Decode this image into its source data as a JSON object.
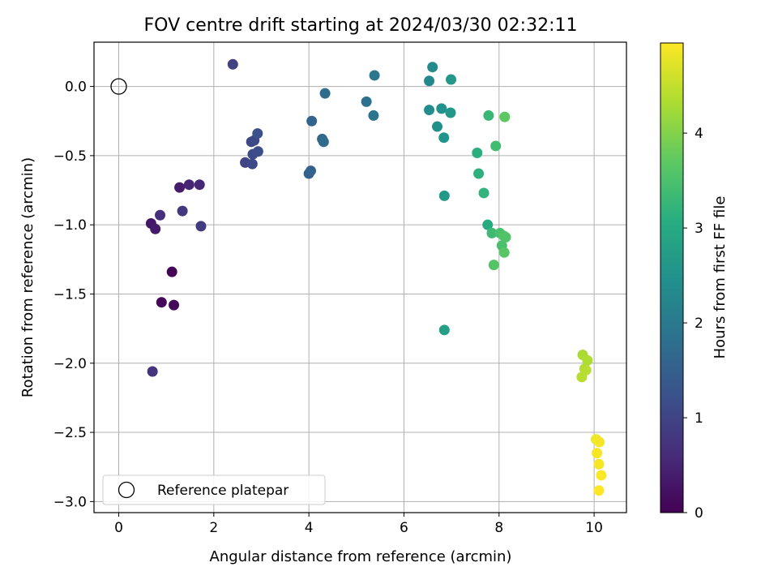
{
  "chart_data": {
    "type": "scatter",
    "title": "FOV centre drift starting at 2024/03/30 02:32:11",
    "xlabel": "Angular distance from reference (arcmin)",
    "ylabel": "Rotation from reference (arcmin)",
    "xlim": [
      -0.52,
      10.68
    ],
    "ylim": [
      -3.08,
      0.32
    ],
    "xticks": [
      0,
      2,
      4,
      6,
      8,
      10
    ],
    "xtick_labels": [
      "0",
      "2",
      "4",
      "6",
      "8",
      "10"
    ],
    "yticks": [
      0.0,
      -0.5,
      -1.0,
      -1.5,
      -2.0,
      -2.5,
      -3.0
    ],
    "ytick_labels": [
      "0.0",
      "−0.5",
      "−1.0",
      "−1.5",
      "−2.0",
      "−2.5",
      "−3.0"
    ],
    "grid": true,
    "colormap": "viridis",
    "colorbar": {
      "label": "Hours from first FF file",
      "range": [
        0,
        4.95
      ],
      "ticks": [
        0,
        1,
        2,
        3,
        4
      ],
      "tick_labels": [
        "0",
        "1",
        "2",
        "3",
        "4"
      ]
    },
    "reference": {
      "label": "Reference platepar",
      "x": 0,
      "y": 0
    },
    "legend_position": "lower-left",
    "points": [
      {
        "x": 1.12,
        "y": -1.34,
        "c": 0.05
      },
      {
        "x": 0.9,
        "y": -1.56,
        "c": 0.08
      },
      {
        "x": 1.16,
        "y": -1.58,
        "c": 0.1
      },
      {
        "x": 0.68,
        "y": -0.99,
        "c": 0.3
      },
      {
        "x": 0.77,
        "y": -1.03,
        "c": 0.35
      },
      {
        "x": 1.28,
        "y": -0.73,
        "c": 0.4
      },
      {
        "x": 1.48,
        "y": -0.71,
        "c": 0.5
      },
      {
        "x": 1.7,
        "y": -0.71,
        "c": 0.55
      },
      {
        "x": 0.87,
        "y": -0.93,
        "c": 0.65
      },
      {
        "x": 0.71,
        "y": -2.06,
        "c": 0.75
      },
      {
        "x": 1.34,
        "y": -0.9,
        "c": 0.8
      },
      {
        "x": 1.73,
        "y": -1.01,
        "c": 0.85
      },
      {
        "x": 2.4,
        "y": 0.16,
        "c": 0.95
      },
      {
        "x": 2.66,
        "y": -0.55,
        "c": 1.0
      },
      {
        "x": 2.79,
        "y": -0.4,
        "c": 1.05
      },
      {
        "x": 2.85,
        "y": -0.39,
        "c": 1.08
      },
      {
        "x": 2.81,
        "y": -0.56,
        "c": 1.1
      },
      {
        "x": 2.82,
        "y": -0.49,
        "c": 1.12
      },
      {
        "x": 2.93,
        "y": -0.47,
        "c": 1.15
      },
      {
        "x": 2.92,
        "y": -0.34,
        "c": 1.2
      },
      {
        "x": 4.0,
        "y": -0.63,
        "c": 1.5
      },
      {
        "x": 4.04,
        "y": -0.61,
        "c": 1.55
      },
      {
        "x": 4.06,
        "y": -0.25,
        "c": 1.6
      },
      {
        "x": 4.28,
        "y": -0.38,
        "c": 1.65
      },
      {
        "x": 4.31,
        "y": -0.4,
        "c": 1.7
      },
      {
        "x": 4.34,
        "y": -0.05,
        "c": 1.75
      },
      {
        "x": 5.21,
        "y": -0.11,
        "c": 1.85
      },
      {
        "x": 5.36,
        "y": -0.21,
        "c": 1.9
      },
      {
        "x": 5.38,
        "y": 0.08,
        "c": 1.95
      },
      {
        "x": 6.53,
        "y": 0.04,
        "c": 2.3
      },
      {
        "x": 6.6,
        "y": 0.14,
        "c": 2.35
      },
      {
        "x": 6.53,
        "y": -0.17,
        "c": 2.4
      },
      {
        "x": 6.7,
        "y": -0.29,
        "c": 2.45
      },
      {
        "x": 6.79,
        "y": -0.16,
        "c": 2.5
      },
      {
        "x": 6.84,
        "y": -0.37,
        "c": 2.55
      },
      {
        "x": 6.98,
        "y": -0.19,
        "c": 2.6
      },
      {
        "x": 6.99,
        "y": 0.05,
        "c": 2.6
      },
      {
        "x": 6.85,
        "y": -0.79,
        "c": 2.65
      },
      {
        "x": 6.85,
        "y": -1.76,
        "c": 2.8
      },
      {
        "x": 7.76,
        "y": -1.0,
        "c": 3.0
      },
      {
        "x": 7.54,
        "y": -0.48,
        "c": 3.1
      },
      {
        "x": 7.57,
        "y": -0.63,
        "c": 3.15
      },
      {
        "x": 7.68,
        "y": -0.77,
        "c": 3.2
      },
      {
        "x": 7.78,
        "y": -0.21,
        "c": 3.3
      },
      {
        "x": 7.85,
        "y": -1.06,
        "c": 3.35
      },
      {
        "x": 7.93,
        "y": -0.43,
        "c": 3.4
      },
      {
        "x": 8.02,
        "y": -1.06,
        "c": 3.5
      },
      {
        "x": 8.06,
        "y": -1.15,
        "c": 3.5
      },
      {
        "x": 8.1,
        "y": -1.08,
        "c": 3.55
      },
      {
        "x": 8.14,
        "y": -1.09,
        "c": 3.55
      },
      {
        "x": 7.89,
        "y": -1.29,
        "c": 3.6
      },
      {
        "x": 8.11,
        "y": -1.2,
        "c": 3.65
      },
      {
        "x": 8.12,
        "y": -0.22,
        "c": 3.7
      },
      {
        "x": 9.76,
        "y": -1.94,
        "c": 4.3
      },
      {
        "x": 9.86,
        "y": -1.98,
        "c": 4.35
      },
      {
        "x": 9.8,
        "y": -2.04,
        "c": 4.35
      },
      {
        "x": 9.83,
        "y": -2.05,
        "c": 4.4
      },
      {
        "x": 9.74,
        "y": -2.1,
        "c": 4.4
      },
      {
        "x": 10.04,
        "y": -2.55,
        "c": 4.85
      },
      {
        "x": 10.11,
        "y": -2.57,
        "c": 4.88
      },
      {
        "x": 10.06,
        "y": -2.65,
        "c": 4.9
      },
      {
        "x": 10.1,
        "y": -2.73,
        "c": 4.9
      },
      {
        "x": 10.15,
        "y": -2.81,
        "c": 4.93
      },
      {
        "x": 10.1,
        "y": -2.92,
        "c": 4.95
      }
    ]
  }
}
